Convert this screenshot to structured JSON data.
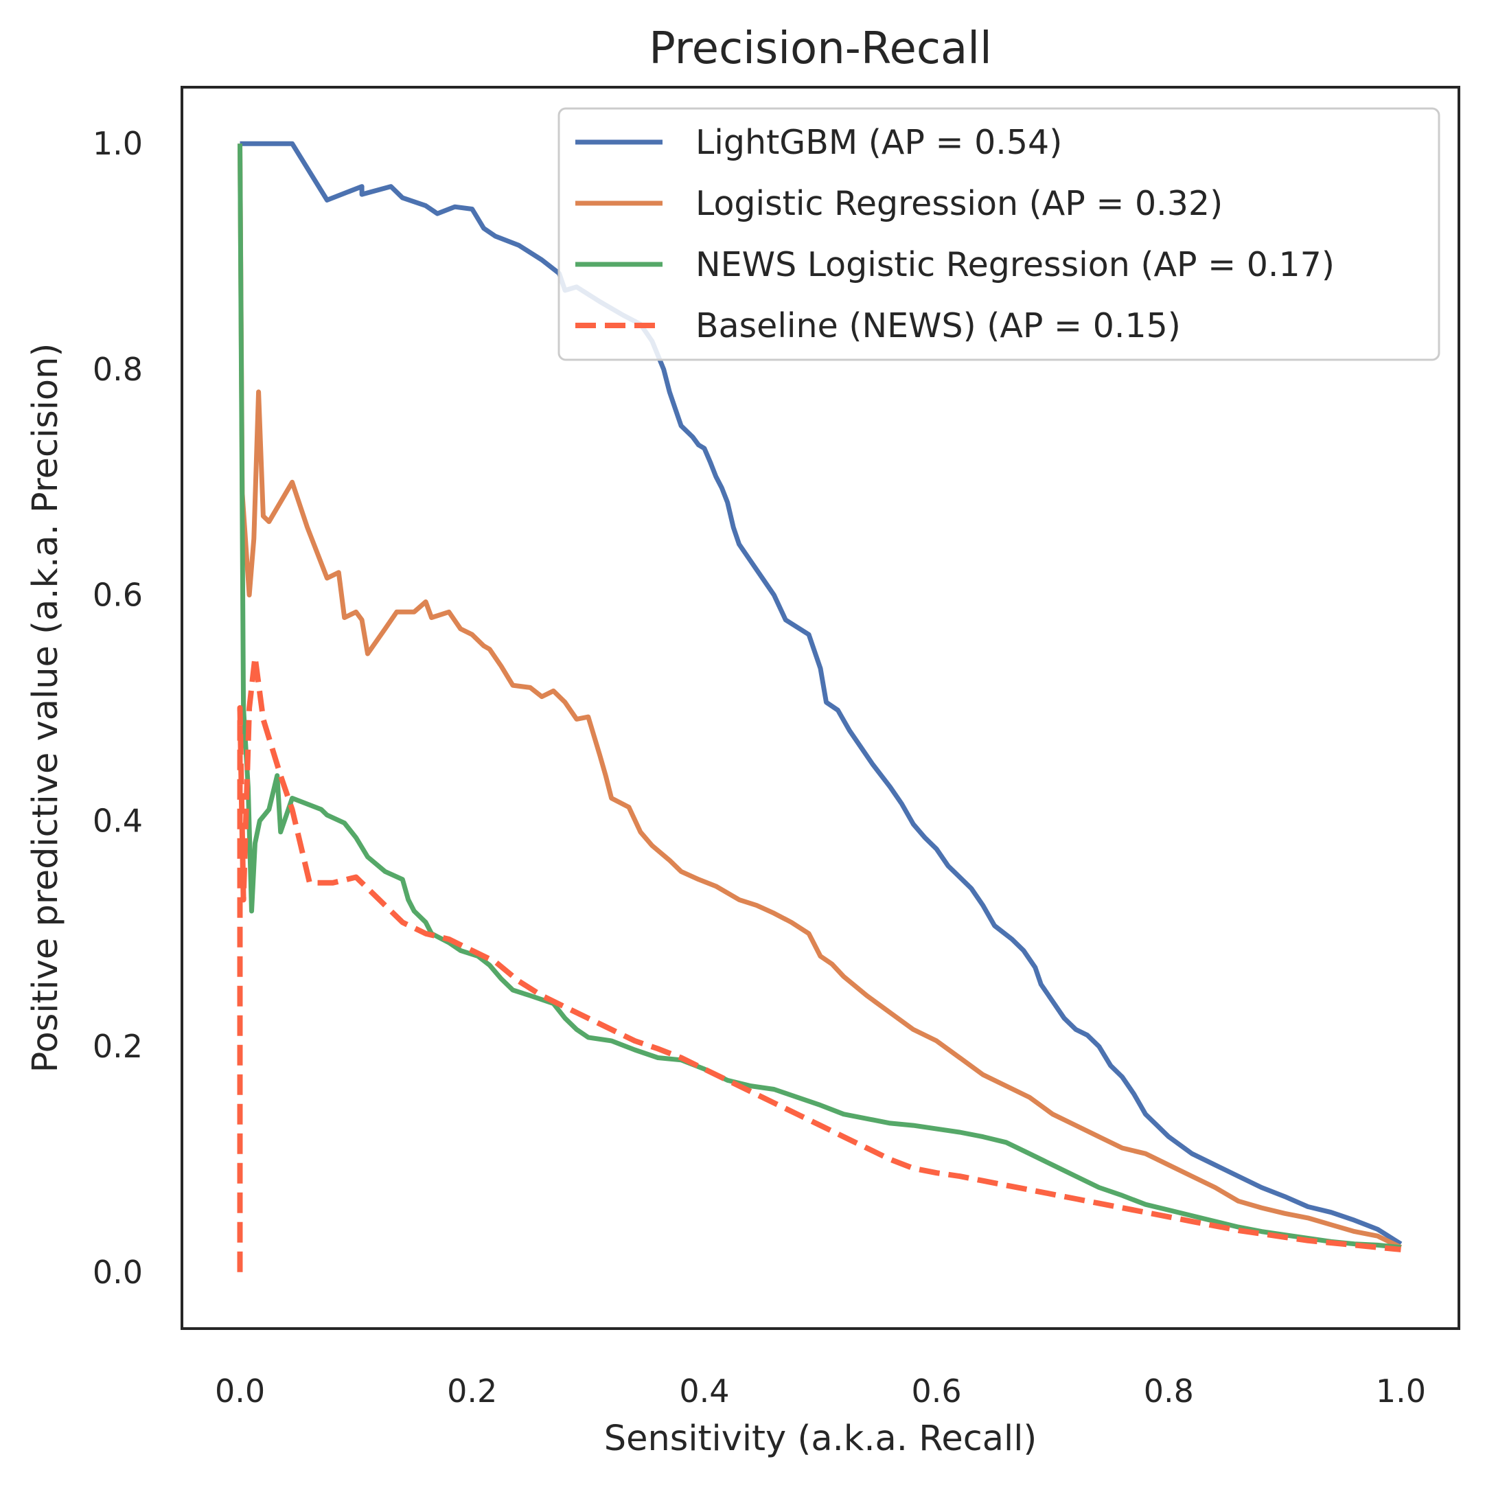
{
  "chart_data": {
    "type": "line",
    "title": "Precision-Recall",
    "xlabel": "Sensitivity (a.k.a. Recall)",
    "ylabel": "Positive predictive value (a.k.a. Precision)",
    "xlim": [
      -0.05,
      1.05
    ],
    "ylim": [
      -0.05,
      1.05
    ],
    "xticks": [
      "0.0",
      "0.2",
      "0.4",
      "0.6",
      "0.8",
      "1.0"
    ],
    "yticks": [
      "0.0",
      "0.2",
      "0.4",
      "0.6",
      "0.8",
      "1.0"
    ],
    "grid": false,
    "legend_position": "top-right",
    "series": [
      {
        "name": "LightGBM (AP = 0.54)",
        "color": "#4c72b0",
        "dash": "solid",
        "points": [
          [
            0.0,
            1.0
          ],
          [
            0.045,
            1.0
          ],
          [
            0.075,
            0.95
          ],
          [
            0.105,
            0.962
          ],
          [
            0.105,
            0.955
          ],
          [
            0.13,
            0.962
          ],
          [
            0.14,
            0.952
          ],
          [
            0.16,
            0.945
          ],
          [
            0.17,
            0.938
          ],
          [
            0.185,
            0.944
          ],
          [
            0.2,
            0.942
          ],
          [
            0.21,
            0.925
          ],
          [
            0.22,
            0.918
          ],
          [
            0.24,
            0.91
          ],
          [
            0.26,
            0.897
          ],
          [
            0.275,
            0.885
          ],
          [
            0.28,
            0.87
          ],
          [
            0.29,
            0.873
          ],
          [
            0.31,
            0.86
          ],
          [
            0.33,
            0.848
          ],
          [
            0.345,
            0.84
          ],
          [
            0.355,
            0.825
          ],
          [
            0.365,
            0.8
          ],
          [
            0.37,
            0.78
          ],
          [
            0.375,
            0.765
          ],
          [
            0.38,
            0.75
          ],
          [
            0.39,
            0.74
          ],
          [
            0.395,
            0.733
          ],
          [
            0.4,
            0.73
          ],
          [
            0.405,
            0.718
          ],
          [
            0.41,
            0.705
          ],
          [
            0.415,
            0.695
          ],
          [
            0.42,
            0.682
          ],
          [
            0.425,
            0.66
          ],
          [
            0.43,
            0.645
          ],
          [
            0.44,
            0.63
          ],
          [
            0.45,
            0.615
          ],
          [
            0.46,
            0.6
          ],
          [
            0.47,
            0.578
          ],
          [
            0.49,
            0.565
          ],
          [
            0.495,
            0.55
          ],
          [
            0.5,
            0.535
          ],
          [
            0.505,
            0.505
          ],
          [
            0.515,
            0.498
          ],
          [
            0.525,
            0.48
          ],
          [
            0.535,
            0.465
          ],
          [
            0.545,
            0.45
          ],
          [
            0.56,
            0.43
          ],
          [
            0.57,
            0.415
          ],
          [
            0.58,
            0.397
          ],
          [
            0.59,
            0.385
          ],
          [
            0.6,
            0.375
          ],
          [
            0.61,
            0.36
          ],
          [
            0.62,
            0.35
          ],
          [
            0.63,
            0.34
          ],
          [
            0.64,
            0.325
          ],
          [
            0.65,
            0.307
          ],
          [
            0.665,
            0.295
          ],
          [
            0.675,
            0.285
          ],
          [
            0.685,
            0.27
          ],
          [
            0.69,
            0.255
          ],
          [
            0.7,
            0.24
          ],
          [
            0.71,
            0.225
          ],
          [
            0.72,
            0.215
          ],
          [
            0.73,
            0.21
          ],
          [
            0.74,
            0.2
          ],
          [
            0.75,
            0.183
          ],
          [
            0.76,
            0.173
          ],
          [
            0.77,
            0.158
          ],
          [
            0.78,
            0.14
          ],
          [
            0.79,
            0.13
          ],
          [
            0.8,
            0.12
          ],
          [
            0.82,
            0.105
          ],
          [
            0.84,
            0.095
          ],
          [
            0.86,
            0.085
          ],
          [
            0.88,
            0.075
          ],
          [
            0.9,
            0.067
          ],
          [
            0.92,
            0.058
          ],
          [
            0.94,
            0.053
          ],
          [
            0.96,
            0.046
          ],
          [
            0.98,
            0.038
          ],
          [
            1.0,
            0.025
          ]
        ]
      },
      {
        "name": "Logistic Regression (AP = 0.32)",
        "color": "#dd8452",
        "dash": "solid",
        "points": [
          [
            0.0,
            1.0
          ],
          [
            0.002,
            0.69
          ],
          [
            0.008,
            0.6
          ],
          [
            0.012,
            0.65
          ],
          [
            0.016,
            0.78
          ],
          [
            0.02,
            0.67
          ],
          [
            0.025,
            0.665
          ],
          [
            0.045,
            0.7
          ],
          [
            0.058,
            0.66
          ],
          [
            0.075,
            0.615
          ],
          [
            0.085,
            0.62
          ],
          [
            0.09,
            0.58
          ],
          [
            0.1,
            0.585
          ],
          [
            0.105,
            0.578
          ],
          [
            0.11,
            0.548
          ],
          [
            0.125,
            0.57
          ],
          [
            0.135,
            0.585
          ],
          [
            0.15,
            0.585
          ],
          [
            0.16,
            0.594
          ],
          [
            0.165,
            0.58
          ],
          [
            0.18,
            0.585
          ],
          [
            0.19,
            0.57
          ],
          [
            0.2,
            0.565
          ],
          [
            0.21,
            0.555
          ],
          [
            0.215,
            0.552
          ],
          [
            0.225,
            0.537
          ],
          [
            0.235,
            0.52
          ],
          [
            0.25,
            0.518
          ],
          [
            0.26,
            0.51
          ],
          [
            0.27,
            0.515
          ],
          [
            0.28,
            0.505
          ],
          [
            0.29,
            0.49
          ],
          [
            0.3,
            0.492
          ],
          [
            0.31,
            0.458
          ],
          [
            0.315,
            0.44
          ],
          [
            0.32,
            0.42
          ],
          [
            0.335,
            0.412
          ],
          [
            0.345,
            0.39
          ],
          [
            0.355,
            0.378
          ],
          [
            0.37,
            0.365
          ],
          [
            0.38,
            0.355
          ],
          [
            0.395,
            0.348
          ],
          [
            0.41,
            0.342
          ],
          [
            0.43,
            0.33
          ],
          [
            0.445,
            0.325
          ],
          [
            0.46,
            0.318
          ],
          [
            0.475,
            0.31
          ],
          [
            0.49,
            0.3
          ],
          [
            0.5,
            0.28
          ],
          [
            0.51,
            0.273
          ],
          [
            0.52,
            0.262
          ],
          [
            0.54,
            0.245
          ],
          [
            0.56,
            0.23
          ],
          [
            0.58,
            0.215
          ],
          [
            0.6,
            0.205
          ],
          [
            0.62,
            0.19
          ],
          [
            0.64,
            0.175
          ],
          [
            0.66,
            0.165
          ],
          [
            0.68,
            0.155
          ],
          [
            0.7,
            0.14
          ],
          [
            0.72,
            0.13
          ],
          [
            0.74,
            0.12
          ],
          [
            0.76,
            0.11
          ],
          [
            0.78,
            0.105
          ],
          [
            0.8,
            0.095
          ],
          [
            0.82,
            0.085
          ],
          [
            0.84,
            0.075
          ],
          [
            0.86,
            0.063
          ],
          [
            0.88,
            0.057
          ],
          [
            0.9,
            0.052
          ],
          [
            0.92,
            0.048
          ],
          [
            0.94,
            0.042
          ],
          [
            0.96,
            0.036
          ],
          [
            0.98,
            0.032
          ],
          [
            1.0,
            0.022
          ]
        ]
      },
      {
        "name": "NEWS Logistic Regression (AP = 0.17)",
        "color": "#55a868",
        "dash": "solid",
        "points": [
          [
            0.0,
            1.0
          ],
          [
            0.003,
            0.5
          ],
          [
            0.007,
            0.43
          ],
          [
            0.01,
            0.32
          ],
          [
            0.013,
            0.38
          ],
          [
            0.017,
            0.4
          ],
          [
            0.025,
            0.41
          ],
          [
            0.032,
            0.44
          ],
          [
            0.035,
            0.39
          ],
          [
            0.045,
            0.42
          ],
          [
            0.07,
            0.41
          ],
          [
            0.075,
            0.405
          ],
          [
            0.09,
            0.398
          ],
          [
            0.1,
            0.385
          ],
          [
            0.11,
            0.368
          ],
          [
            0.125,
            0.355
          ],
          [
            0.14,
            0.348
          ],
          [
            0.145,
            0.33
          ],
          [
            0.15,
            0.32
          ],
          [
            0.16,
            0.31
          ],
          [
            0.165,
            0.3
          ],
          [
            0.18,
            0.292
          ],
          [
            0.19,
            0.285
          ],
          [
            0.205,
            0.28
          ],
          [
            0.215,
            0.272
          ],
          [
            0.225,
            0.26
          ],
          [
            0.235,
            0.25
          ],
          [
            0.25,
            0.245
          ],
          [
            0.27,
            0.238
          ],
          [
            0.28,
            0.225
          ],
          [
            0.29,
            0.215
          ],
          [
            0.3,
            0.208
          ],
          [
            0.32,
            0.205
          ],
          [
            0.34,
            0.197
          ],
          [
            0.36,
            0.19
          ],
          [
            0.38,
            0.188
          ],
          [
            0.4,
            0.18
          ],
          [
            0.42,
            0.17
          ],
          [
            0.44,
            0.165
          ],
          [
            0.46,
            0.162
          ],
          [
            0.48,
            0.155
          ],
          [
            0.5,
            0.148
          ],
          [
            0.52,
            0.14
          ],
          [
            0.54,
            0.136
          ],
          [
            0.56,
            0.132
          ],
          [
            0.58,
            0.13
          ],
          [
            0.6,
            0.127
          ],
          [
            0.62,
            0.124
          ],
          [
            0.64,
            0.12
          ],
          [
            0.66,
            0.115
          ],
          [
            0.68,
            0.105
          ],
          [
            0.7,
            0.095
          ],
          [
            0.72,
            0.085
          ],
          [
            0.74,
            0.075
          ],
          [
            0.76,
            0.068
          ],
          [
            0.78,
            0.06
          ],
          [
            0.8,
            0.055
          ],
          [
            0.82,
            0.05
          ],
          [
            0.84,
            0.045
          ],
          [
            0.86,
            0.04
          ],
          [
            0.88,
            0.036
          ],
          [
            0.9,
            0.033
          ],
          [
            0.92,
            0.03
          ],
          [
            0.94,
            0.027
          ],
          [
            0.96,
            0.025
          ],
          [
            0.98,
            0.024
          ],
          [
            1.0,
            0.022
          ]
        ]
      },
      {
        "name": "Baseline (NEWS) (AP = 0.15)",
        "color": "#fc6343",
        "dash": "dashed",
        "points": [
          [
            0.0,
            0.0
          ],
          [
            0.0,
            0.5
          ],
          [
            0.003,
            0.33
          ],
          [
            0.008,
            0.5
          ],
          [
            0.013,
            0.545
          ],
          [
            0.02,
            0.49
          ],
          [
            0.035,
            0.44
          ],
          [
            0.045,
            0.41
          ],
          [
            0.06,
            0.345
          ],
          [
            0.08,
            0.345
          ],
          [
            0.1,
            0.35
          ],
          [
            0.12,
            0.33
          ],
          [
            0.14,
            0.31
          ],
          [
            0.16,
            0.3
          ],
          [
            0.18,
            0.295
          ],
          [
            0.2,
            0.285
          ],
          [
            0.22,
            0.275
          ],
          [
            0.24,
            0.258
          ],
          [
            0.26,
            0.245
          ],
          [
            0.28,
            0.235
          ],
          [
            0.3,
            0.225
          ],
          [
            0.32,
            0.215
          ],
          [
            0.34,
            0.205
          ],
          [
            0.36,
            0.198
          ],
          [
            0.38,
            0.19
          ],
          [
            0.4,
            0.18
          ],
          [
            0.42,
            0.17
          ],
          [
            0.44,
            0.16
          ],
          [
            0.46,
            0.15
          ],
          [
            0.48,
            0.14
          ],
          [
            0.5,
            0.13
          ],
          [
            0.52,
            0.12
          ],
          [
            0.54,
            0.11
          ],
          [
            0.56,
            0.1
          ],
          [
            0.58,
            0.092
          ],
          [
            0.6,
            0.088
          ],
          [
            0.62,
            0.085
          ],
          [
            0.64,
            0.081
          ],
          [
            0.66,
            0.077
          ],
          [
            0.68,
            0.073
          ],
          [
            0.7,
            0.069
          ],
          [
            0.72,
            0.065
          ],
          [
            0.74,
            0.061
          ],
          [
            0.76,
            0.057
          ],
          [
            0.78,
            0.053
          ],
          [
            0.8,
            0.049
          ],
          [
            0.82,
            0.045
          ],
          [
            0.84,
            0.041
          ],
          [
            0.86,
            0.037
          ],
          [
            0.88,
            0.034
          ],
          [
            0.9,
            0.031
          ],
          [
            0.92,
            0.028
          ],
          [
            0.94,
            0.026
          ],
          [
            0.96,
            0.024
          ],
          [
            0.98,
            0.022
          ],
          [
            1.0,
            0.02
          ]
        ]
      }
    ]
  }
}
